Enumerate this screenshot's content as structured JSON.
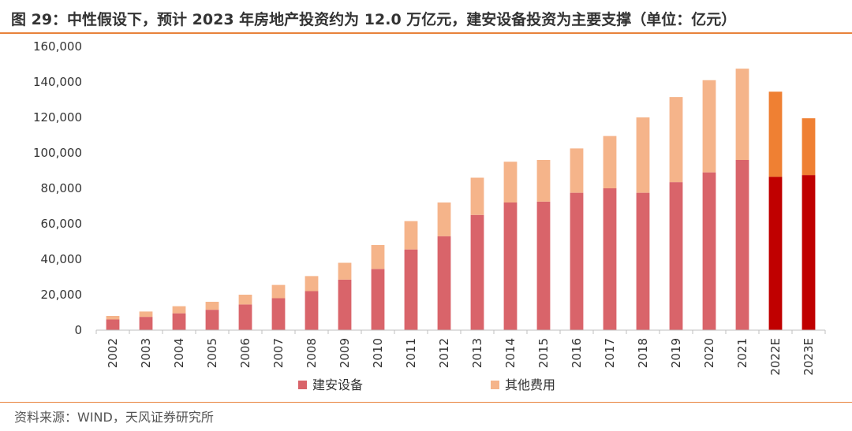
{
  "title": "图 29：中性假设下，预计 2023 年房地产投资约为 12.0 万亿元，建安设备投资为主要支撑（单位：亿元）",
  "source": "资料来源：WIND，天风证券研究所",
  "colors": {
    "construction": "#d9646a",
    "other": "#f5b48a",
    "construction_forecast": "#c00000",
    "other_forecast": "#ef8033",
    "accent": "#e8823a"
  },
  "chart_data": {
    "type": "bar",
    "stacked": true,
    "title": "中性假设下，预计 2023 年房地产投资约为 12.0 万亿元，建安设备投资为主要支撑",
    "ylabel": "亿元",
    "ylim": [
      0,
      160000
    ],
    "yticks": [
      0,
      20000,
      40000,
      60000,
      80000,
      100000,
      120000,
      140000,
      160000
    ],
    "ytick_labels": [
      "0",
      "20,000",
      "40,000",
      "60,000",
      "80,000",
      "100,000",
      "120,000",
      "140,000",
      "160,000"
    ],
    "categories": [
      "2002",
      "2003",
      "2004",
      "2005",
      "2006",
      "2007",
      "2008",
      "2009",
      "2010",
      "2011",
      "2012",
      "2013",
      "2014",
      "2015",
      "2016",
      "2017",
      "2018",
      "2019",
      "2020",
      "2021",
      "2022E",
      "2023E"
    ],
    "forecast": [
      false,
      false,
      false,
      false,
      false,
      false,
      false,
      false,
      false,
      false,
      false,
      false,
      false,
      false,
      false,
      false,
      false,
      false,
      false,
      false,
      true,
      true
    ],
    "series": [
      {
        "name": "建安设备",
        "values": [
          6000,
          7500,
          9500,
          11500,
          14500,
          18000,
          22000,
          28500,
          34500,
          45500,
          53000,
          65000,
          72000,
          72500,
          77500,
          80000,
          77500,
          83500,
          89000,
          96000,
          86500,
          87500
        ]
      },
      {
        "name": "其他费用",
        "values": [
          2000,
          3000,
          4000,
          4500,
          5500,
          7500,
          8500,
          9500,
          13500,
          16000,
          19000,
          21000,
          23000,
          23500,
          25000,
          29500,
          42500,
          48000,
          52000,
          51500,
          48000,
          32000
        ]
      }
    ],
    "legend": [
      "建安设备",
      "其他费用"
    ],
    "legend_position": "bottom",
    "grid": false
  }
}
